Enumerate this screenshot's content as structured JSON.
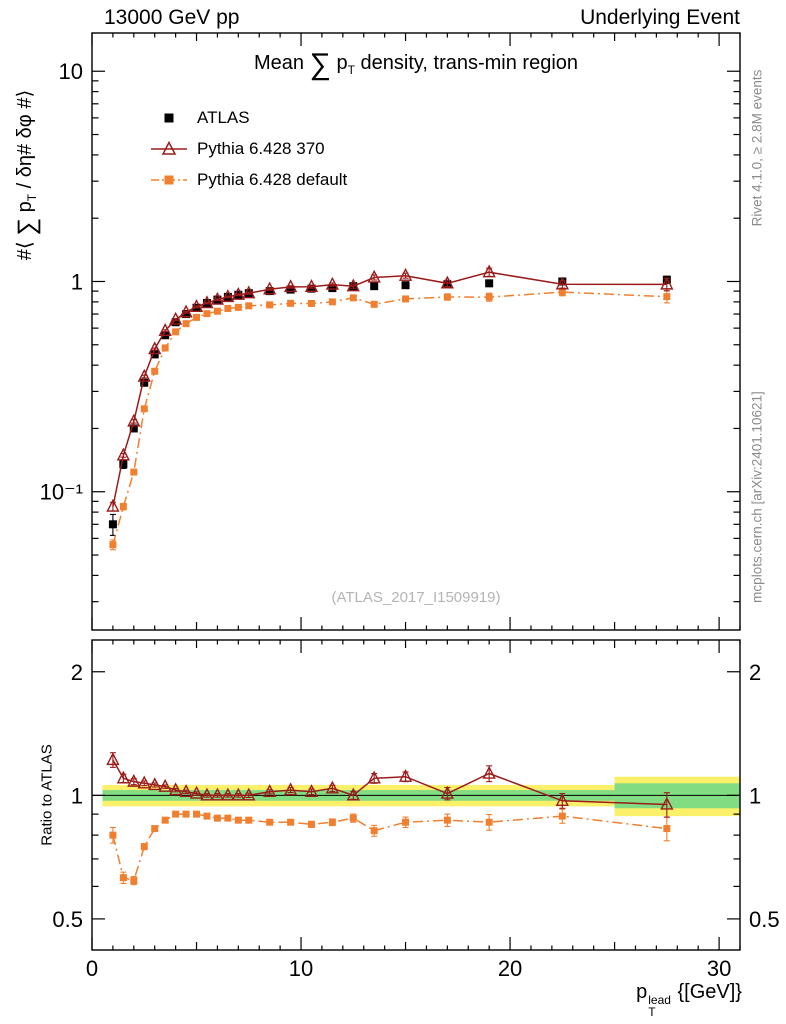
{
  "header": {
    "left": "13000 GeV pp",
    "right": "Underlying Event"
  },
  "side_notes": {
    "top_rotated": "Rivet 4.1.0, ≥ 2.8M events",
    "bottom_rotated": "mcplots.cern.ch [arXiv:2401.10621]"
  },
  "watermark": "(ATLAS_2017_I1509919)",
  "title": {
    "prefix": "Mean ",
    "sigma": "∑",
    "p_base": " p",
    "p_sub": "T",
    "suffix": " density, trans-min region"
  },
  "y_axis_label": {
    "prefix": "#⟨ ",
    "sigma": "∑",
    "p_base": " p",
    "p_sub": "T",
    "suffix": " / δη# δφ #⟩"
  },
  "ratio_axis_label": "Ratio to ATLAS",
  "x_axis_label": {
    "base": "p",
    "sup": "lead",
    "sub": "T",
    "suffix": " {[GeV]}"
  },
  "legend": [
    {
      "label": "ATLAS",
      "marker": "square",
      "line": "none",
      "color": "#000000"
    },
    {
      "label": "Pythia 6.428 370",
      "marker": "triangle-open",
      "line": "solid",
      "color": "#9b1b1b"
    },
    {
      "label": "Pythia 6.428 default",
      "marker": "square",
      "line": "dashdot",
      "color": "#f08030"
    }
  ],
  "colors": {
    "band_yellow": "#fbf06a",
    "band_green": "#82dc82",
    "frame": "#000000",
    "notes_gray": "#8c8c8c",
    "watermark_gray": "#b4b4b4"
  },
  "chart_data": {
    "type": "scatter",
    "title": "Mean Sum pT density, trans-min region",
    "xlabel": "pT lead [GeV]",
    "ylabel": "(Sum pT / d eta d phi)",
    "legend_position": "top-left",
    "grid": false,
    "xlim": [
      0,
      31
    ],
    "xticks": [
      {
        "v": 0,
        "label": "0"
      },
      {
        "v": 10,
        "label": "10"
      },
      {
        "v": 20,
        "label": "20"
      },
      {
        "v": 30,
        "label": "30"
      }
    ],
    "x": [
      1,
      1.5,
      2,
      2.5,
      3,
      3.5,
      4,
      4.5,
      5,
      5.5,
      6,
      6.5,
      7,
      7.5,
      8.5,
      9.5,
      10.5,
      11.5,
      12.5,
      13.5,
      15,
      17,
      19,
      22.5,
      27.5
    ],
    "panels": [
      {
        "name": "main",
        "yscale": "log",
        "ylim": [
          0.022,
          15.2
        ],
        "yticks": [
          {
            "v": 10,
            "label": "10"
          },
          {
            "v": 1,
            "label": "1"
          },
          {
            "v": 0.1,
            "label": "10⁻¹"
          }
        ]
      },
      {
        "name": "ratio",
        "yscale": "log",
        "ylim": [
          0.42,
          2.39
        ],
        "label_both_sides": true,
        "ref_line": 1,
        "yticks": [
          {
            "v": 2,
            "label": "2"
          },
          {
            "v": 1,
            "label": "1"
          },
          {
            "v": 0.5,
            "label": "0.5"
          }
        ],
        "band_segments": [
          {
            "x0": 0.5,
            "x1": 25,
            "yellow": [
              0.94,
              1.06
            ],
            "green": [
              0.97,
              1.03
            ]
          },
          {
            "x0": 25,
            "x1": 31,
            "yellow": [
              0.89,
              1.11
            ],
            "green": [
              0.93,
              1.07
            ]
          }
        ]
      }
    ],
    "series": [
      {
        "name": "ATLAS",
        "color": "#000000",
        "marker": "square",
        "marker_size": 8,
        "line": "none",
        "is_reference": true,
        "y": [
          0.07,
          0.135,
          0.2,
          0.33,
          0.45,
          0.555,
          0.64,
          0.7,
          0.75,
          0.79,
          0.82,
          0.845,
          0.865,
          0.88,
          0.9,
          0.915,
          0.925,
          0.93,
          0.95,
          0.95,
          0.96,
          0.97,
          0.98,
          1.0,
          1.02
        ],
        "yerr": [
          0.008,
          0.006,
          0.006,
          0.007,
          0.007,
          0.007,
          0.007,
          0.007,
          0.007,
          0.007,
          0.007,
          0.008,
          0.008,
          0.008,
          0.008,
          0.009,
          0.009,
          0.01,
          0.011,
          0.012,
          0.014,
          0.018,
          0.022,
          0.028,
          0.038
        ]
      },
      {
        "name": "Pythia 6.428 370",
        "color": "#9b1b1b",
        "marker": "triangle-open",
        "marker_size": 10,
        "line": "solid",
        "y": [
          0.085,
          0.149,
          0.216,
          0.353,
          0.477,
          0.583,
          0.659,
          0.714,
          0.758,
          0.79,
          0.82,
          0.845,
          0.865,
          0.88,
          0.918,
          0.942,
          0.944,
          0.967,
          0.95,
          1.045,
          1.066,
          0.98,
          1.107,
          0.97,
          0.969
        ],
        "yerr": [
          0.004,
          0.003,
          0.004,
          0.005,
          0.005,
          0.006,
          0.006,
          0.007,
          0.008,
          0.008,
          0.008,
          0.008,
          0.009,
          0.011,
          0.011,
          0.013,
          0.015,
          0.017,
          0.021,
          0.029,
          0.029,
          0.034,
          0.049,
          0.04,
          0.066
        ],
        "ratio": [
          1.22,
          1.1,
          1.08,
          1.07,
          1.06,
          1.05,
          1.03,
          1.02,
          1.01,
          1.0,
          1.0,
          1.0,
          1.0,
          1.0,
          1.02,
          1.03,
          1.02,
          1.04,
          1.0,
          1.1,
          1.11,
          1.01,
          1.13,
          0.97,
          0.95
        ],
        "ratio_err": [
          0.05,
          0.025,
          0.018,
          0.014,
          0.012,
          0.01,
          0.01,
          0.01,
          0.01,
          0.01,
          0.01,
          0.01,
          0.01,
          0.012,
          0.012,
          0.014,
          0.016,
          0.018,
          0.022,
          0.03,
          0.03,
          0.035,
          0.05,
          0.04,
          0.065
        ]
      },
      {
        "name": "Pythia 6.428 default",
        "color": "#f08030",
        "marker": "square",
        "marker_size": 7,
        "line": "dashdot",
        "y": [
          0.056,
          0.085,
          0.124,
          0.248,
          0.374,
          0.483,
          0.576,
          0.63,
          0.675,
          0.703,
          0.722,
          0.744,
          0.753,
          0.766,
          0.774,
          0.787,
          0.786,
          0.8,
          0.836,
          0.779,
          0.826,
          0.844,
          0.843,
          0.89,
          0.847
        ],
        "yerr": [
          0.003,
          0.003,
          0.003,
          0.004,
          0.005,
          0.005,
          0.006,
          0.006,
          0.007,
          0.007,
          0.007,
          0.008,
          0.008,
          0.009,
          0.009,
          0.011,
          0.013,
          0.015,
          0.019,
          0.024,
          0.024,
          0.029,
          0.037,
          0.035,
          0.056
        ],
        "ratio": [
          0.8,
          0.63,
          0.62,
          0.75,
          0.83,
          0.87,
          0.9,
          0.9,
          0.9,
          0.89,
          0.88,
          0.88,
          0.87,
          0.87,
          0.86,
          0.86,
          0.85,
          0.86,
          0.88,
          0.82,
          0.86,
          0.87,
          0.86,
          0.89,
          0.83
        ],
        "ratio_err": [
          0.035,
          0.02,
          0.014,
          0.012,
          0.01,
          0.009,
          0.009,
          0.009,
          0.009,
          0.009,
          0.009,
          0.009,
          0.009,
          0.01,
          0.01,
          0.012,
          0.014,
          0.016,
          0.02,
          0.025,
          0.025,
          0.03,
          0.038,
          0.035,
          0.055
        ]
      }
    ]
  }
}
